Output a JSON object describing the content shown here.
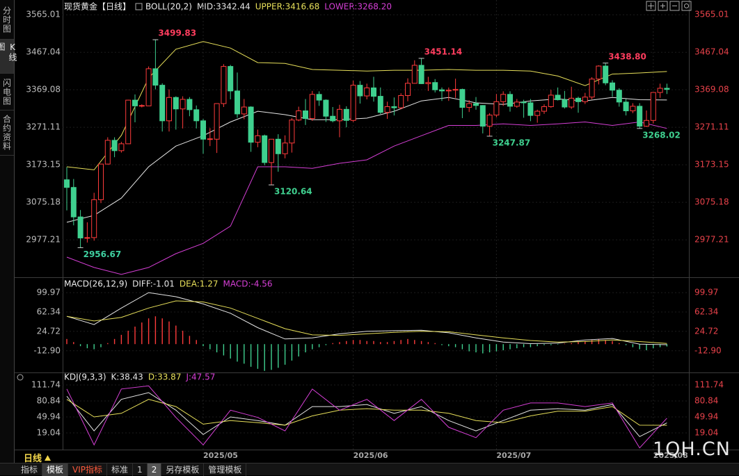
{
  "sidebar": [
    "分时图",
    "K线图",
    "闪电图",
    "合约资料"
  ],
  "toolbar": {
    "period": "日线",
    "tabs": [
      "指标",
      "模板",
      "VIP指标",
      "标准",
      "1",
      "2",
      "另存模板",
      "管理模板"
    ]
  },
  "watermark": "1QH.CN",
  "chart_data": [
    {
      "type": "candlestick",
      "title": "现货黄金【日线】",
      "up_color": "#ff3b3b",
      "down_color": "#3fd08f",
      "grid": true,
      "ylim": [
        2883,
        3589
      ],
      "yticks": [
        3565.01,
        3467.04,
        3369.08,
        3271.11,
        3173.15,
        3075.18,
        2977.21
      ],
      "xticks": [
        {
          "value": 20,
          "label": "2025/05"
        },
        {
          "value": 42,
          "label": "2025/06"
        },
        {
          "value": 63,
          "label": "2025/07"
        },
        {
          "value": 86,
          "label": "2025/08"
        }
      ],
      "open": [
        3134,
        3114,
        3037,
        2982,
        2983,
        3082,
        3175,
        3237,
        3210,
        3228,
        3342,
        3327,
        3327,
        3424,
        3381,
        3288,
        3349,
        3319,
        3344,
        3317,
        3288,
        3240,
        3240,
        3333,
        3430,
        3366,
        3306,
        3324,
        3232,
        3249,
        3179,
        3240,
        3202,
        3230,
        3290,
        3314,
        3294,
        3357,
        3342,
        3300,
        3288,
        3318,
        3289,
        3381,
        3353,
        3374,
        3352,
        3310,
        3325,
        3322,
        3354,
        3386,
        3433,
        3385,
        3388,
        3369,
        3366,
        3368,
        3370,
        3323,
        3333,
        3328,
        3274,
        3303,
        3338,
        3357,
        3326,
        3337,
        3335,
        3302,
        3313,
        3325,
        3355,
        3343,
        3324,
        3347,
        3338,
        3350,
        3397,
        3431,
        3387,
        3368,
        3337,
        3314,
        3326,
        3274,
        3289,
        3362,
        3373
      ],
      "high": [
        3167,
        3136,
        3055,
        3023,
        3100,
        3176,
        3245,
        3245,
        3233,
        3343,
        3357,
        3331,
        3430,
        3499.83,
        3386,
        3370,
        3352,
        3352,
        3350,
        3328,
        3293,
        3269,
        3333,
        3436,
        3434,
        3414,
        3345,
        3326,
        3265,
        3252,
        3240,
        3253,
        3250,
        3295,
        3325,
        3345,
        3366,
        3365,
        3344,
        3324,
        3330,
        3326,
        3393,
        3392,
        3385,
        3403,
        3375,
        3338,
        3349,
        3360,
        3399,
        3446,
        3451.14,
        3403,
        3397,
        3375,
        3375,
        3398,
        3372,
        3342,
        3350,
        3329,
        3308,
        3358,
        3365,
        3365,
        3345,
        3343,
        3345,
        3317,
        3331,
        3369,
        3375,
        3366,
        3377,
        3351,
        3361,
        3402,
        3433,
        3438.8,
        3394,
        3373,
        3345,
        3334,
        3334,
        3315,
        3363,
        3385,
        3385
      ],
      "low": [
        3054,
        3015,
        2956.67,
        2970,
        2975,
        3073,
        3174,
        3193,
        3205,
        3228,
        3284,
        3323,
        3327,
        3370,
        3260,
        3260,
        3265,
        3268,
        3300,
        3268,
        3202,
        3222,
        3204,
        3324,
        3344,
        3296,
        3292,
        3207,
        3219,
        3172,
        3120.64,
        3155,
        3190,
        3205,
        3287,
        3277,
        3288,
        3327,
        3285,
        3284,
        3245,
        3271,
        3285,
        3333,
        3344,
        3338,
        3306,
        3293,
        3302,
        3318,
        3339,
        3385,
        3384,
        3366,
        3362,
        3340,
        3340,
        3348,
        3295,
        3311,
        3317,
        3255,
        3247.87,
        3297,
        3327,
        3312,
        3322,
        3296,
        3287,
        3283,
        3306,
        3322,
        3341,
        3320,
        3319,
        3309,
        3332,
        3344,
        3383,
        3381,
        3351,
        3325,
        3302,
        3308,
        3268.02,
        3272,
        3281,
        3348,
        3358
      ],
      "close": [
        3114,
        3037,
        2982,
        2983,
        3082,
        3175,
        3237,
        3210,
        3228,
        3342,
        3327,
        3328,
        3424,
        3381,
        3288,
        3349,
        3319,
        3344,
        3317,
        3288,
        3240,
        3241,
        3333,
        3430,
        3366,
        3306,
        3324,
        3232,
        3249,
        3179,
        3240,
        3202,
        3230,
        3290,
        3314,
        3294,
        3357,
        3342,
        3300,
        3288,
        3318,
        3289,
        3381,
        3353,
        3374,
        3352,
        3310,
        3325,
        3322,
        3354,
        3386,
        3433,
        3385,
        3388,
        3369,
        3366,
        3368,
        3370,
        3323,
        3333,
        3328,
        3274,
        3303,
        3338,
        3357,
        3326,
        3337,
        3335,
        3302,
        3313,
        3325,
        3355,
        3343,
        3324,
        3347,
        3338,
        3350,
        3397,
        3431,
        3387,
        3368,
        3337,
        3314,
        3326,
        3274,
        3289,
        3362,
        3373,
        3370
      ],
      "annotations": [
        {
          "label": "3499.83",
          "value": 3499.83,
          "kind": "high",
          "color": "#ff3d5e"
        },
        {
          "label": "2956.67",
          "value": 2956.67,
          "kind": "low",
          "color": "#3fd0a0"
        },
        {
          "label": "3120.64",
          "value": 3120.64,
          "kind": "low",
          "color": "#3fd08f"
        },
        {
          "label": "3451.14",
          "value": 3451.14,
          "kind": "high",
          "color": "#ff3d5e"
        },
        {
          "label": "3247.87",
          "value": 3247.87,
          "kind": "low",
          "color": "#3fd08f"
        },
        {
          "label": "3438.80",
          "value": 3438.8,
          "kind": "high",
          "color": "#ff3d5e"
        },
        {
          "label": "3268.02",
          "value": 3268.02,
          "kind": "low",
          "color": "#3fd08f"
        }
      ],
      "overlay": {
        "name": "BOLL(20,2)",
        "x": [
          0,
          4,
          8,
          12,
          16,
          20,
          24,
          28,
          32,
          36,
          40,
          44,
          48,
          52,
          56,
          60,
          64,
          68,
          72,
          76,
          80,
          84,
          88
        ],
        "series": [
          {
            "name": "MID:3342.44",
            "color": "#e6e6e6",
            "values": [
              3023,
              3041,
              3086,
              3168,
              3222,
              3249,
              3285,
              3313,
              3304,
              3291,
              3291,
              3295,
              3313,
              3340,
              3349,
              3335,
              3331,
              3340,
              3345,
              3340,
              3349,
              3343,
              3342.44
            ]
          },
          {
            "name": "UPPER:3416.68",
            "color": "#e8e05a",
            "values": [
              3168,
              3160,
              3250,
              3400,
              3475,
              3495,
              3478,
              3440,
              3438,
              3422,
              3420,
              3418,
              3420,
              3420,
              3422,
              3420,
              3420,
              3418,
              3405,
              3380,
              3410,
              3413,
              3416.68
            ]
          },
          {
            "name": "LOWER:3268.20",
            "color": "#d63fd6",
            "values": [
              2932,
              2905,
              2887,
              2905,
              2941,
              2968,
              3013,
              3168,
              3168,
              3164,
              3177,
              3186,
              3222,
              3249,
              3276,
              3276,
              3280,
              3276,
              3280,
              3285,
              3276,
              3285,
              3268.2
            ]
          }
        ]
      }
    },
    {
      "type": "macd",
      "title": "MACD(26,12,9)",
      "grid": true,
      "ylim": [
        -53.7,
        125.8
      ],
      "yticks": [
        99.97,
        62.34,
        24.72,
        {
          "value": -12.9,
          "label": "-12.90"
        }
      ],
      "x": [
        0,
        4,
        8,
        12,
        16,
        20,
        24,
        28,
        32,
        36,
        40,
        44,
        48,
        52,
        56,
        60,
        64,
        68,
        72,
        76,
        80,
        84,
        88
      ],
      "series": [
        {
          "name": "DIFF:-1.01",
          "color": "#e6e6e6",
          "values": [
            54,
            38,
            70,
            100,
            92,
            78,
            60,
            32,
            10,
            12,
            20,
            25,
            26,
            27,
            22,
            12,
            4,
            1,
            2,
            8,
            11,
            0,
            -1.01
          ]
        },
        {
          "name": "DEA:1.27",
          "color": "#e8e05a",
          "values": [
            54,
            45,
            52,
            70,
            84,
            82,
            70,
            50,
            30,
            18,
            17,
            20,
            23,
            25,
            24,
            18,
            12,
            7,
            4,
            5,
            8,
            5,
            1.27
          ]
        }
      ],
      "histogram": {
        "name": "MACD:-4.56",
        "color": "#d63fd6",
        "up_color": "#ff3b3b",
        "down_color": "#3fd08f",
        "values": [
          10,
          4,
          -4,
          -8,
          -10,
          -6,
          2,
          10,
          18,
          26,
          34,
          42,
          50,
          54,
          50,
          44,
          36,
          26,
          16,
          8,
          -4,
          -10,
          -16,
          -22,
          -28,
          -34,
          -38,
          -44,
          -48,
          -52,
          -50,
          -46,
          -40,
          -32,
          -24,
          -16,
          -10,
          -6,
          -2,
          2,
          4,
          6,
          8,
          8,
          6,
          6,
          4,
          4,
          6,
          8,
          10,
          8,
          6,
          4,
          2,
          -2,
          -4,
          -6,
          -10,
          -14,
          -16,
          -18,
          -16,
          -14,
          -12,
          -10,
          -8,
          -6,
          -6,
          -4,
          -2,
          -2,
          -1,
          1,
          2,
          4,
          6,
          8,
          10,
          8,
          6,
          2,
          -2,
          -6,
          -10,
          -12,
          -8,
          -6,
          -4.56
        ]
      }
    },
    {
      "type": "kdj",
      "title": "KDJ(9,3,3)",
      "grid": true,
      "ylim": [
        -17.2,
        134.6
      ],
      "yticks": [
        111.74,
        80.84,
        49.94,
        19.04
      ],
      "x": [
        0,
        4,
        8,
        12,
        16,
        20,
        24,
        28,
        32,
        36,
        40,
        44,
        48,
        52,
        56,
        60,
        64,
        68,
        72,
        76,
        80,
        84,
        88
      ],
      "series": [
        {
          "name": "K:38.43",
          "color": "#e6e6e6",
          "values": [
            90,
            23,
            84,
            97,
            63,
            16,
            50,
            43,
            34,
            70,
            70,
            74,
            57,
            70,
            43,
            23,
            43,
            63,
            66,
            63,
            74,
            12,
            38.43
          ]
        },
        {
          "name": "D:33.87",
          "color": "#e8e05a",
          "values": [
            84,
            50,
            57,
            84,
            70,
            36,
            43,
            39,
            34,
            52,
            63,
            66,
            63,
            63,
            57,
            43,
            39,
            52,
            61,
            61,
            70,
            34,
            33.87
          ]
        },
        {
          "name": "J:47.57",
          "color": "#d63fd6",
          "values": [
            104,
            -4,
            104,
            110,
            49,
            -4,
            63,
            49,
            23,
            104,
            63,
            84,
            43,
            84,
            30,
            10,
            63,
            77,
            77,
            70,
            77,
            -10,
            47.57
          ]
        }
      ]
    }
  ]
}
